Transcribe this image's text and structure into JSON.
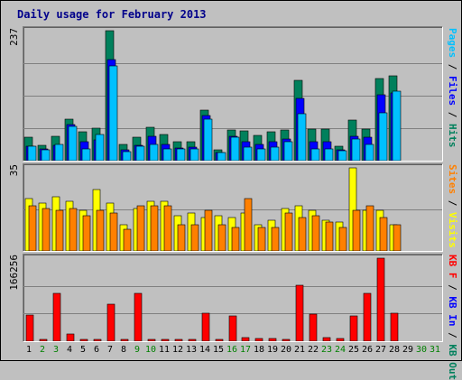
{
  "title": "Daily usage for February 2013",
  "colors": {
    "hits": "#00805c",
    "files": "#0000ff",
    "pages": "#00c0ff",
    "visits": "#ffff00",
    "sites": "#ff8000",
    "kbin": "#ff0000",
    "kbout": "#0000ff",
    "weekday": "#000000",
    "weekend": "#008000"
  },
  "right_labels": {
    "panel1": [
      {
        "text": "Pages",
        "color": "#00c0ff"
      },
      {
        "text": " / ",
        "color": "#000000"
      },
      {
        "text": "Files",
        "color": "#0000ff"
      },
      {
        "text": " / ",
        "color": "#000000"
      },
      {
        "text": "Hits",
        "color": "#00805c"
      }
    ],
    "panel2": [
      {
        "text": "Sites",
        "color": "#ff8000"
      },
      {
        "text": " / ",
        "color": "#000000"
      },
      {
        "text": "Visits",
        "color": "#ffff00"
      }
    ],
    "panel3": [
      {
        "text": "KB F",
        "color": "#ff0000"
      },
      {
        "text": " / ",
        "color": "#000000"
      },
      {
        "text": "KB In",
        "color": "#0000ff"
      },
      {
        "text": " / ",
        "color": "#000000"
      },
      {
        "text": "KB Out",
        "color": "#00805c"
      }
    ]
  },
  "chart_data": [
    {
      "type": "bar",
      "panel": "usage",
      "ymax_label": "237",
      "ylim": [
        0,
        237
      ],
      "categories": [
        "1",
        "2",
        "3",
        "4",
        "5",
        "6",
        "7",
        "8",
        "9",
        "10",
        "11",
        "12",
        "13",
        "14",
        "15",
        "16",
        "17",
        "18",
        "19",
        "20",
        "21",
        "22",
        "23",
        "24",
        "25",
        "26",
        "27",
        "28",
        "29",
        "30",
        "31"
      ],
      "series": [
        {
          "name": "Hits",
          "values": [
            42,
            28,
            44,
            76,
            52,
            60,
            237,
            29,
            42,
            61,
            48,
            34,
            35,
            92,
            20,
            56,
            55,
            46,
            52,
            56,
            146,
            58,
            58,
            27,
            74,
            58,
            150,
            154,
            0,
            0,
            0
          ]
        },
        {
          "name": "Files",
          "values": [
            27,
            22,
            28,
            66,
            34,
            38,
            185,
            20,
            28,
            44,
            29,
            23,
            24,
            82,
            15,
            44,
            34,
            30,
            34,
            40,
            114,
            34,
            34,
            20,
            44,
            42,
            120,
            124,
            0,
            0,
            0
          ]
        },
        {
          "name": "Pages",
          "values": [
            26,
            20,
            30,
            62,
            22,
            48,
            172,
            16,
            26,
            30,
            22,
            22,
            22,
            76,
            14,
            42,
            24,
            22,
            25,
            35,
            86,
            22,
            22,
            18,
            40,
            30,
            88,
            126,
            0,
            0,
            0
          ]
        }
      ]
    },
    {
      "type": "bar",
      "panel": "visits",
      "ymax_label": "35",
      "ylim": [
        0,
        35
      ],
      "categories": [
        "1",
        "2",
        "3",
        "4",
        "5",
        "6",
        "7",
        "8",
        "9",
        "10",
        "11",
        "12",
        "13",
        "14",
        "15",
        "16",
        "17",
        "18",
        "19",
        "20",
        "21",
        "22",
        "23",
        "24",
        "25",
        "26",
        "27",
        "28",
        "29",
        "30",
        "31"
      ],
      "series": [
        {
          "name": "Visits",
          "values": [
            22,
            20,
            23,
            21,
            17,
            26,
            20,
            11,
            18,
            21,
            21,
            15,
            16,
            14,
            15,
            14,
            16,
            11,
            13,
            18,
            19,
            17,
            13,
            12,
            35,
            17,
            17,
            11,
            0,
            0,
            0
          ]
        },
        {
          "name": "Sites",
          "values": [
            19,
            18,
            17,
            18,
            15,
            17,
            16,
            9,
            19,
            19,
            19,
            11,
            11,
            17,
            11,
            10,
            22,
            10,
            10,
            16,
            14,
            15,
            12,
            10,
            17,
            19,
            14,
            11,
            0,
            0,
            0
          ]
        }
      ]
    },
    {
      "type": "bar",
      "panel": "kbytes",
      "ymax_label": "166256",
      "ylim": [
        0,
        166256
      ],
      "categories": [
        "1",
        "2",
        "3",
        "4",
        "5",
        "6",
        "7",
        "8",
        "9",
        "10",
        "11",
        "12",
        "13",
        "14",
        "15",
        "16",
        "17",
        "18",
        "19",
        "20",
        "21",
        "22",
        "23",
        "24",
        "25",
        "26",
        "27",
        "28",
        "29",
        "30",
        "31"
      ],
      "series": [
        {
          "name": "KB F",
          "values": [
            52000,
            4000,
            96000,
            15000,
            3000,
            3000,
            74000,
            4000,
            96000,
            3000,
            3000,
            3000,
            3000,
            56000,
            3000,
            50000,
            7000,
            6000,
            6000,
            4000,
            112000,
            54000,
            8000,
            6000,
            50000,
            96000,
            166256,
            56000,
            0,
            0,
            0
          ]
        }
      ]
    }
  ]
}
